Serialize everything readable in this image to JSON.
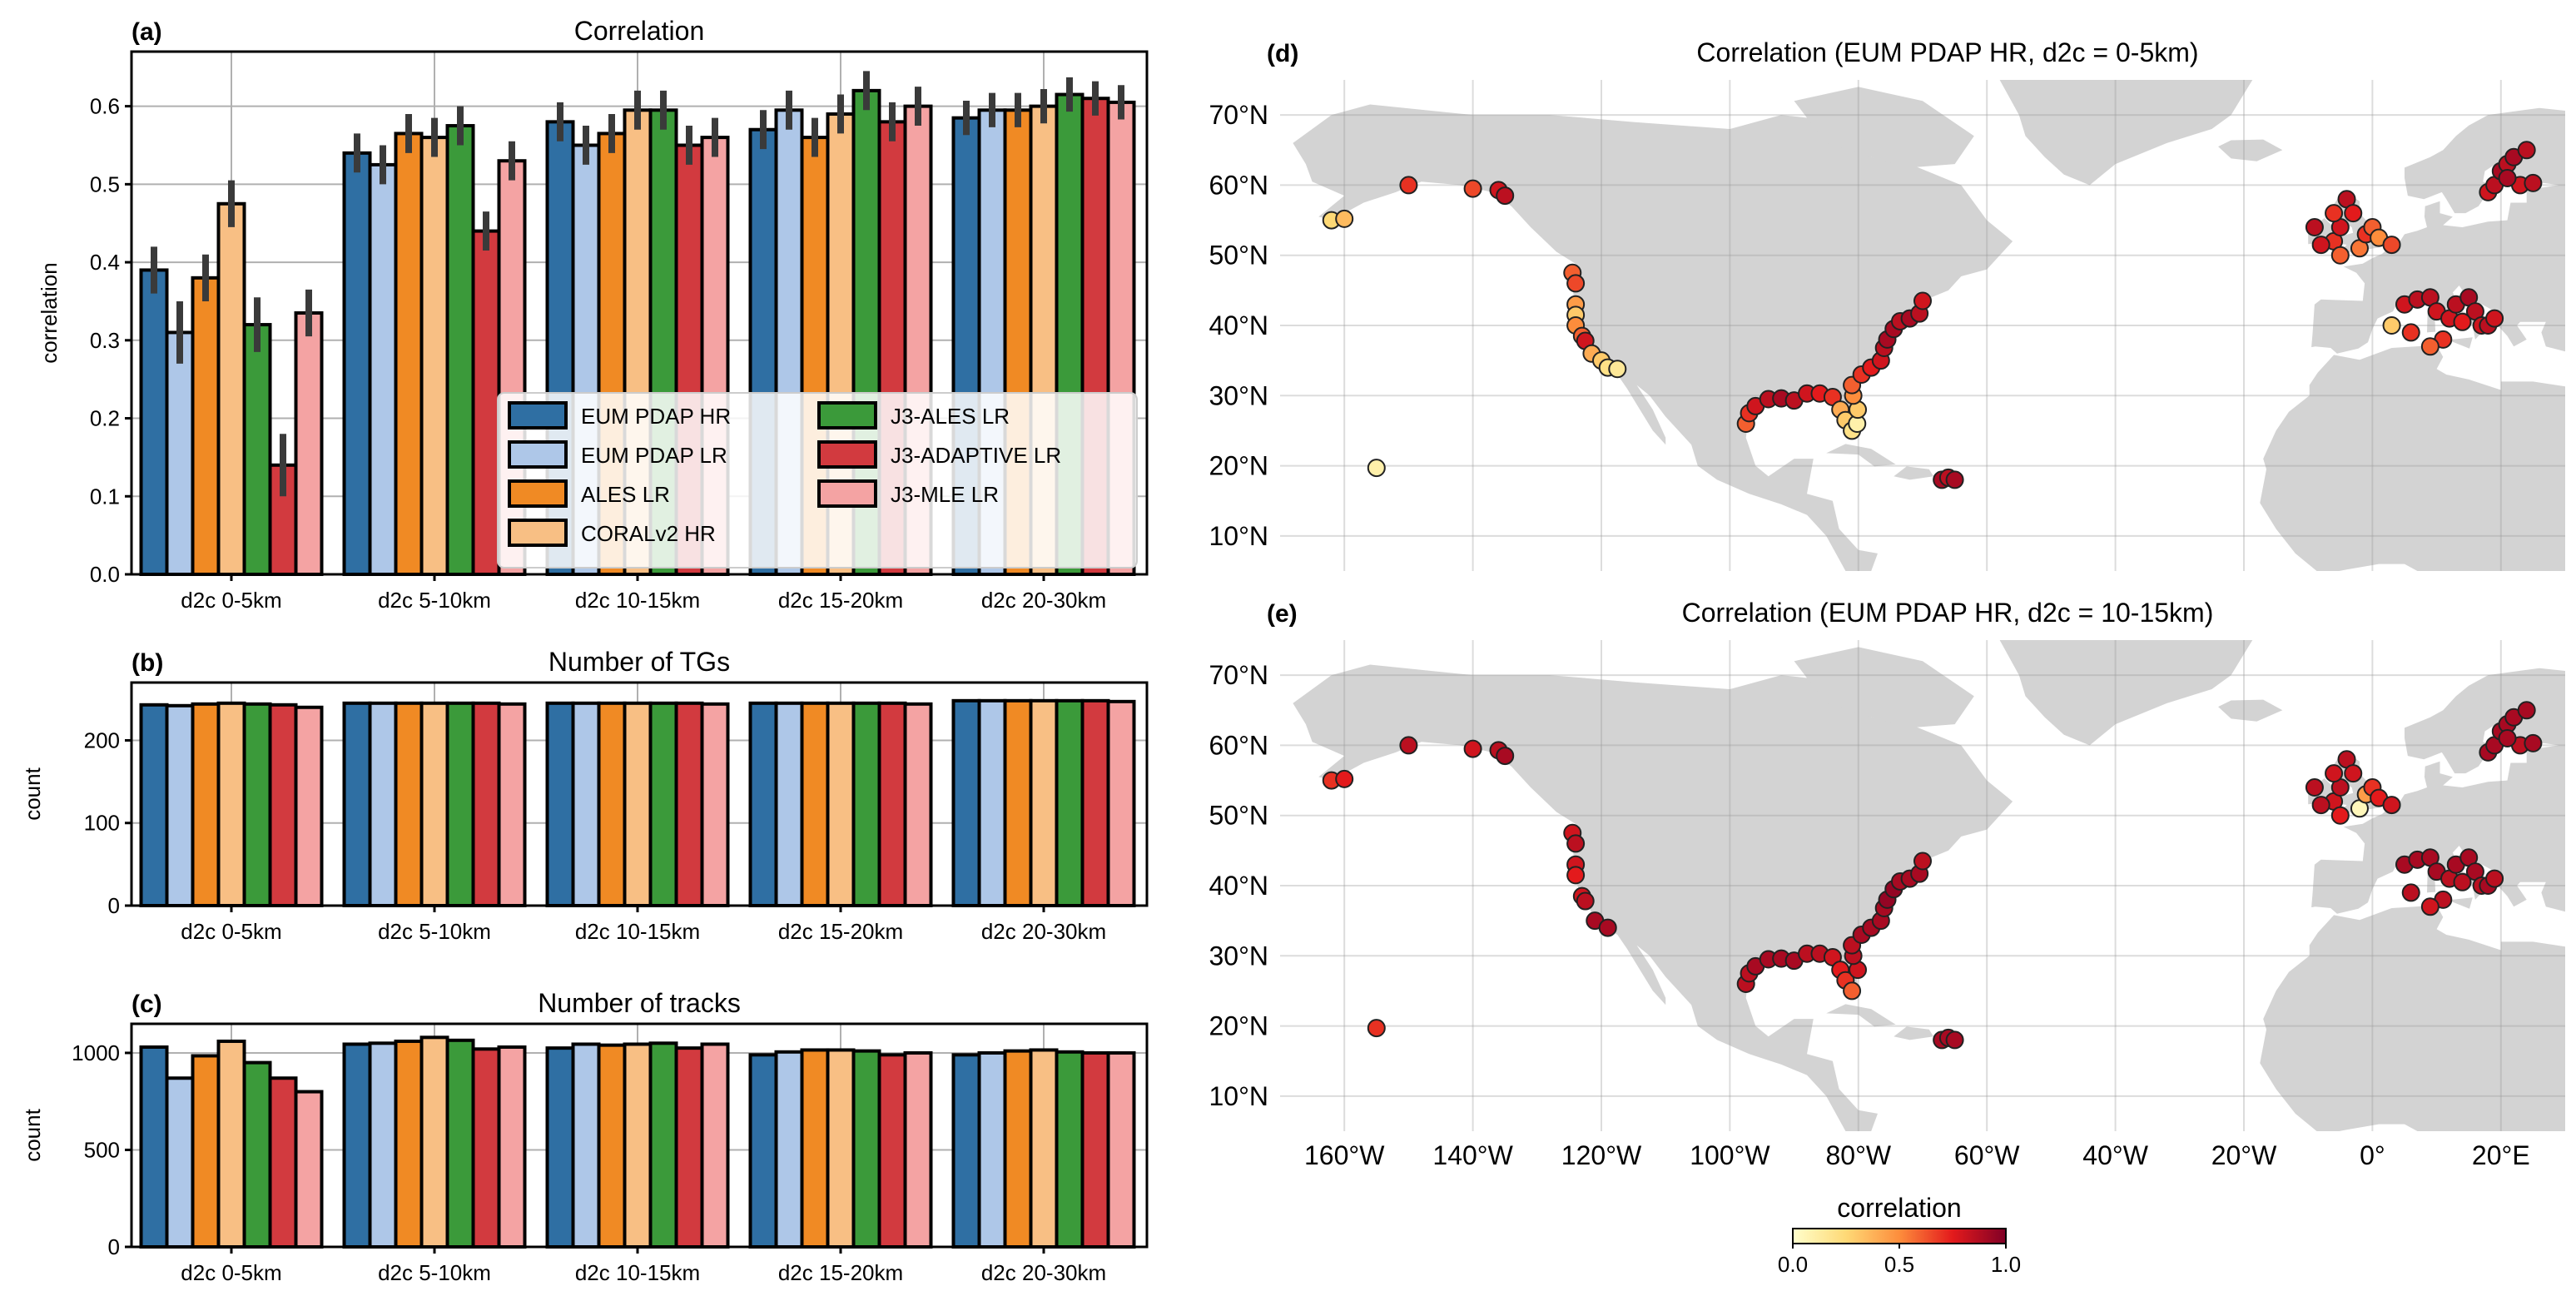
{
  "colors": {
    "EUM PDAP HR": "#2f6fa3",
    "EUM PDAP LR": "#aec7e8",
    "ALES LR": "#f08a24",
    "CORALv2 HR": "#f8bf84",
    "J3-ALES LR": "#3b9a3a",
    "J3-ADAPTIVE LR": "#d23a3f",
    "J3-MLE LR": "#f4a3a3",
    "land": "#d3d3d3",
    "grid": "#b0b0b0",
    "errbar": "#3a3a3a"
  },
  "chart_data": [
    {
      "id": "a",
      "panel_label": "(a)",
      "type": "bar",
      "title": "Correlation",
      "xlabel": "",
      "ylabel": "correlation",
      "ylim": [
        0,
        0.67
      ],
      "yticks": [
        "0.0",
        "0.1",
        "0.2",
        "0.3",
        "0.4",
        "0.5",
        "0.6"
      ],
      "yticks_values": [
        0,
        0.1,
        0.2,
        0.3,
        0.4,
        0.5,
        0.6
      ],
      "categories": [
        "d2c 0-5km",
        "d2c 5-10km",
        "d2c 10-15km",
        "d2c 15-20km",
        "d2c 20-30km"
      ],
      "legend": {
        "position": "lower-right",
        "entries": [
          "EUM PDAP HR",
          "EUM PDAP LR",
          "ALES LR",
          "CORALv2 HR",
          "J3-ALES LR",
          "J3-ADAPTIVE LR",
          "J3-MLE LR"
        ]
      },
      "series": [
        {
          "name": "EUM PDAP HR",
          "values": [
            0.39,
            0.54,
            0.58,
            0.57,
            0.585
          ],
          "err": [
            0.03,
            0.025,
            0.025,
            0.025,
            0.022
          ]
        },
        {
          "name": "EUM PDAP LR",
          "values": [
            0.31,
            0.525,
            0.55,
            0.595,
            0.595
          ],
          "err": [
            0.04,
            0.025,
            0.025,
            0.025,
            0.022
          ]
        },
        {
          "name": "ALES LR",
          "values": [
            0.38,
            0.565,
            0.565,
            0.56,
            0.595
          ],
          "err": [
            0.03,
            0.025,
            0.025,
            0.025,
            0.022
          ]
        },
        {
          "name": "CORALv2 HR",
          "values": [
            0.475,
            0.56,
            0.595,
            0.59,
            0.6
          ],
          "err": [
            0.03,
            0.025,
            0.025,
            0.025,
            0.022
          ]
        },
        {
          "name": "J3-ALES LR",
          "values": [
            0.32,
            0.575,
            0.595,
            0.62,
            0.615
          ],
          "err": [
            0.035,
            0.025,
            0.025,
            0.025,
            0.022
          ]
        },
        {
          "name": "J3-ADAPTIVE LR",
          "values": [
            0.14,
            0.44,
            0.55,
            0.58,
            0.61
          ],
          "err": [
            0.04,
            0.025,
            0.025,
            0.025,
            0.022
          ]
        },
        {
          "name": "J3-MLE LR",
          "values": [
            0.335,
            0.53,
            0.56,
            0.6,
            0.605
          ],
          "err": [
            0.03,
            0.025,
            0.025,
            0.025,
            0.022
          ]
        }
      ]
    },
    {
      "id": "b",
      "panel_label": "(b)",
      "type": "bar",
      "title": "Number of TGs",
      "xlabel": "",
      "ylabel": "count",
      "ylim": [
        0,
        270
      ],
      "yticks": [
        "0",
        "100",
        "200"
      ],
      "yticks_values": [
        0,
        100,
        200
      ],
      "categories": [
        "d2c 0-5km",
        "d2c 5-10km",
        "d2c 10-15km",
        "d2c 15-20km",
        "d2c 20-30km"
      ],
      "series": [
        {
          "name": "EUM PDAP HR",
          "values": [
            243,
            245,
            245,
            245,
            248
          ]
        },
        {
          "name": "EUM PDAP LR",
          "values": [
            242,
            245,
            245,
            245,
            248
          ]
        },
        {
          "name": "ALES LR",
          "values": [
            244,
            245,
            245,
            245,
            248
          ]
        },
        {
          "name": "CORALv2 HR",
          "values": [
            245,
            245,
            245,
            245,
            248
          ]
        },
        {
          "name": "J3-ALES LR",
          "values": [
            244,
            245,
            245,
            245,
            248
          ]
        },
        {
          "name": "J3-ADAPTIVE LR",
          "values": [
            243,
            245,
            245,
            245,
            248
          ]
        },
        {
          "name": "J3-MLE LR",
          "values": [
            240,
            244,
            244,
            244,
            247
          ]
        }
      ]
    },
    {
      "id": "c",
      "panel_label": "(c)",
      "type": "bar",
      "title": "Number of tracks",
      "xlabel": "",
      "ylabel": "count",
      "ylim": [
        0,
        1150
      ],
      "yticks": [
        "0",
        "500",
        "1000"
      ],
      "yticks_values": [
        0,
        500,
        1000
      ],
      "categories": [
        "d2c 0-5km",
        "d2c 5-10km",
        "d2c 10-15km",
        "d2c 15-20km",
        "d2c 20-30km"
      ],
      "series": [
        {
          "name": "EUM PDAP HR",
          "values": [
            1030,
            1045,
            1025,
            990,
            990
          ]
        },
        {
          "name": "EUM PDAP LR",
          "values": [
            870,
            1050,
            1045,
            1005,
            1000
          ]
        },
        {
          "name": "ALES LR",
          "values": [
            985,
            1060,
            1040,
            1015,
            1010
          ]
        },
        {
          "name": "CORALv2 HR",
          "values": [
            1060,
            1080,
            1045,
            1015,
            1015
          ]
        },
        {
          "name": "J3-ALES LR",
          "values": [
            950,
            1065,
            1050,
            1010,
            1005
          ]
        },
        {
          "name": "J3-ADAPTIVE LR",
          "values": [
            870,
            1020,
            1025,
            990,
            1000
          ]
        },
        {
          "name": "J3-MLE LR",
          "values": [
            800,
            1030,
            1045,
            1000,
            1000
          ]
        }
      ]
    },
    {
      "id": "d",
      "panel_label": "(d)",
      "type": "scatter",
      "title": "Correlation (EUM PDAP HR, d2c = 0-5km)",
      "xlim": [
        -170,
        30
      ],
      "ylim": [
        5,
        75
      ],
      "xticks": [
        "160°W",
        "140°W",
        "120°W",
        "100°W",
        "80°W",
        "60°W",
        "40°W",
        "20°W",
        "0°",
        "20°E"
      ],
      "xticks_values": [
        -160,
        -140,
        -120,
        -100,
        -80,
        -60,
        -40,
        -20,
        0,
        20
      ],
      "yticks": [
        "10°N",
        "20°N",
        "30°N",
        "40°N",
        "50°N",
        "60°N",
        "70°N"
      ],
      "yticks_values": [
        10,
        20,
        30,
        40,
        50,
        60,
        70
      ],
      "points": [
        [
          -162,
          55,
          0.25
        ],
        [
          -160,
          55.2,
          0.35
        ],
        [
          -150,
          60,
          0.7
        ],
        [
          -140,
          59.5,
          0.65
        ],
        [
          -136,
          59.3,
          0.8
        ],
        [
          -135,
          58.5,
          0.85
        ],
        [
          -124.5,
          47.5,
          0.6
        ],
        [
          -124,
          46,
          0.65
        ],
        [
          -124,
          43,
          0.45
        ],
        [
          -124,
          41.5,
          0.3
        ],
        [
          -124,
          40,
          0.5
        ],
        [
          -123,
          38.5,
          0.6
        ],
        [
          -122.5,
          37.8,
          0.8
        ],
        [
          -121.5,
          36,
          0.4
        ],
        [
          -120,
          35,
          0.3
        ],
        [
          -119,
          34,
          0.2
        ],
        [
          -117.5,
          33.8,
          0.15
        ],
        [
          -155,
          19.7,
          0.1
        ],
        [
          -97.5,
          26,
          0.6
        ],
        [
          -97,
          27.5,
          0.7
        ],
        [
          -96,
          28.5,
          0.8
        ],
        [
          -94,
          29.5,
          0.85
        ],
        [
          -92,
          29.6,
          0.9
        ],
        [
          -90,
          29.3,
          0.85
        ],
        [
          -88,
          30.3,
          0.8
        ],
        [
          -86,
          30.3,
          0.75
        ],
        [
          -84,
          29.8,
          0.7
        ],
        [
          -82.8,
          28,
          0.4
        ],
        [
          -82,
          26.5,
          0.3
        ],
        [
          -81,
          25,
          0.2
        ],
        [
          -80.2,
          26,
          0.1
        ],
        [
          -80.1,
          28,
          0.3
        ],
        [
          -80.8,
          30,
          0.5
        ],
        [
          -81,
          31.5,
          0.6
        ],
        [
          -79.5,
          33,
          0.7
        ],
        [
          -78,
          34,
          0.75
        ],
        [
          -76.5,
          35,
          0.8
        ],
        [
          -76,
          36.8,
          0.85
        ],
        [
          -75.5,
          38,
          0.9
        ],
        [
          -74.5,
          39.5,
          0.9
        ],
        [
          -73.5,
          40.6,
          0.85
        ],
        [
          -72,
          41,
          0.9
        ],
        [
          -70.5,
          41.7,
          0.85
        ],
        [
          -70,
          43.5,
          0.8
        ],
        [
          -67,
          18,
          0.9
        ],
        [
          -66,
          18.3,
          0.85
        ],
        [
          -65,
          18,
          0.9
        ],
        [
          -6,
          52,
          0.7
        ],
        [
          -5,
          54,
          0.8
        ],
        [
          -4,
          58,
          0.85
        ],
        [
          -3,
          56,
          0.75
        ],
        [
          -5,
          50,
          0.6
        ],
        [
          -2,
          51,
          0.55
        ],
        [
          -1,
          53,
          0.7
        ],
        [
          0,
          54,
          0.6
        ],
        [
          1,
          52.5,
          0.5
        ],
        [
          3,
          51.5,
          0.65
        ],
        [
          -8,
          51.5,
          0.8
        ],
        [
          -9,
          54,
          0.85
        ],
        [
          -6,
          56,
          0.7
        ],
        [
          5,
          43,
          0.8
        ],
        [
          7,
          43.7,
          0.85
        ],
        [
          9,
          44,
          0.85
        ],
        [
          10,
          42,
          0.8
        ],
        [
          12,
          41,
          0.8
        ],
        [
          13,
          43,
          0.85
        ],
        [
          15,
          44,
          0.9
        ],
        [
          16,
          42,
          0.85
        ],
        [
          17,
          40,
          0.8
        ],
        [
          18,
          40,
          0.85
        ],
        [
          19,
          41,
          0.8
        ],
        [
          14,
          40.5,
          0.75
        ],
        [
          11,
          38,
          0.7
        ],
        [
          9,
          37,
          0.6
        ],
        [
          6,
          39,
          0.7
        ],
        [
          3,
          40,
          0.3
        ],
        [
          18,
          59,
          0.8
        ],
        [
          19,
          60,
          0.85
        ],
        [
          20,
          62,
          0.9
        ],
        [
          21,
          63,
          0.85
        ],
        [
          22,
          64,
          0.9
        ],
        [
          24,
          65,
          0.85
        ],
        [
          23,
          60,
          0.8
        ],
        [
          25,
          60.3,
          0.85
        ],
        [
          21,
          61,
          0.9
        ]
      ]
    },
    {
      "id": "e",
      "panel_label": "(e)",
      "type": "scatter",
      "title": "Correlation (EUM PDAP HR, d2c = 10-15km)",
      "xlim": [
        -170,
        30
      ],
      "ylim": [
        5,
        75
      ],
      "xticks": [
        "160°W",
        "140°W",
        "120°W",
        "100°W",
        "80°W",
        "60°W",
        "40°W",
        "20°W",
        "0°",
        "20°E"
      ],
      "xticks_values": [
        -160,
        -140,
        -120,
        -100,
        -80,
        -60,
        -40,
        -20,
        0,
        20
      ],
      "yticks": [
        "10°N",
        "20°N",
        "30°N",
        "40°N",
        "50°N",
        "60°N",
        "70°N"
      ],
      "yticks_values": [
        10,
        20,
        30,
        40,
        50,
        60,
        70
      ],
      "points": [
        [
          -162,
          55,
          0.7
        ],
        [
          -160,
          55.2,
          0.75
        ],
        [
          -150,
          60,
          0.85
        ],
        [
          -140,
          59.5,
          0.8
        ],
        [
          -136,
          59.3,
          0.85
        ],
        [
          -135,
          58.5,
          0.9
        ],
        [
          -124.5,
          47.5,
          0.8
        ],
        [
          -124,
          46,
          0.85
        ],
        [
          -124,
          43,
          0.8
        ],
        [
          -124,
          41.5,
          0.75
        ],
        [
          -123,
          38.5,
          0.8
        ],
        [
          -122.5,
          37.8,
          0.85
        ],
        [
          -121,
          35,
          0.9
        ],
        [
          -119,
          34,
          0.9
        ],
        [
          -155,
          19.7,
          0.7
        ],
        [
          -97.5,
          26,
          0.85
        ],
        [
          -97,
          27.5,
          0.85
        ],
        [
          -96,
          28.5,
          0.9
        ],
        [
          -94,
          29.5,
          0.9
        ],
        [
          -92,
          29.6,
          0.9
        ],
        [
          -90,
          29.3,
          0.9
        ],
        [
          -88,
          30.3,
          0.85
        ],
        [
          -86,
          30.3,
          0.85
        ],
        [
          -84,
          29.8,
          0.8
        ],
        [
          -82.8,
          28,
          0.75
        ],
        [
          -82,
          26.5,
          0.7
        ],
        [
          -81,
          25,
          0.6
        ],
        [
          -80.1,
          28,
          0.8
        ],
        [
          -80.8,
          30,
          0.85
        ],
        [
          -81,
          31.5,
          0.85
        ],
        [
          -79.5,
          33,
          0.9
        ],
        [
          -78,
          34,
          0.9
        ],
        [
          -76.5,
          35,
          0.9
        ],
        [
          -76,
          36.8,
          0.9
        ],
        [
          -75.5,
          38,
          0.95
        ],
        [
          -74.5,
          39.5,
          0.95
        ],
        [
          -73.5,
          40.6,
          0.9
        ],
        [
          -72,
          41,
          0.9
        ],
        [
          -70.5,
          41.7,
          0.9
        ],
        [
          -70,
          43.5,
          0.85
        ],
        [
          -67,
          18,
          0.9
        ],
        [
          -66,
          18.3,
          0.9
        ],
        [
          -65,
          18,
          0.9
        ],
        [
          -6,
          52,
          0.8
        ],
        [
          -5,
          54,
          0.85
        ],
        [
          -4,
          58,
          0.85
        ],
        [
          -3,
          56,
          0.8
        ],
        [
          -5,
          50,
          0.75
        ],
        [
          -2,
          51,
          0.05
        ],
        [
          -1,
          53,
          0.45
        ],
        [
          0,
          54,
          0.7
        ],
        [
          1,
          52.5,
          0.75
        ],
        [
          3,
          51.5,
          0.8
        ],
        [
          -8,
          51.5,
          0.85
        ],
        [
          -9,
          54,
          0.85
        ],
        [
          -6,
          56,
          0.8
        ],
        [
          5,
          43,
          0.9
        ],
        [
          7,
          43.7,
          0.9
        ],
        [
          9,
          44,
          0.9
        ],
        [
          10,
          42,
          0.9
        ],
        [
          12,
          41,
          0.85
        ],
        [
          13,
          43,
          0.9
        ],
        [
          15,
          44,
          0.9
        ],
        [
          16,
          42,
          0.9
        ],
        [
          17,
          40,
          0.85
        ],
        [
          18,
          40,
          0.9
        ],
        [
          19,
          41,
          0.85
        ],
        [
          14,
          40.5,
          0.85
        ],
        [
          11,
          38,
          0.85
        ],
        [
          9,
          37,
          0.8
        ],
        [
          6,
          39,
          0.85
        ],
        [
          18,
          59,
          0.9
        ],
        [
          19,
          60,
          0.9
        ],
        [
          20,
          62,
          0.9
        ],
        [
          21,
          63,
          0.9
        ],
        [
          22,
          64,
          0.9
        ],
        [
          24,
          65,
          0.9
        ],
        [
          23,
          60,
          0.85
        ],
        [
          25,
          60.3,
          0.9
        ],
        [
          21,
          61,
          0.9
        ]
      ]
    }
  ],
  "colorbar": {
    "label": "correlation",
    "ticks": [
      "0.0",
      "0.5",
      "1.0"
    ],
    "ticks_values": [
      0,
      0.5,
      1.0
    ],
    "stops": [
      "#ffffcc",
      "#fed976",
      "#fd8d3c",
      "#e31a1c",
      "#800026"
    ]
  }
}
